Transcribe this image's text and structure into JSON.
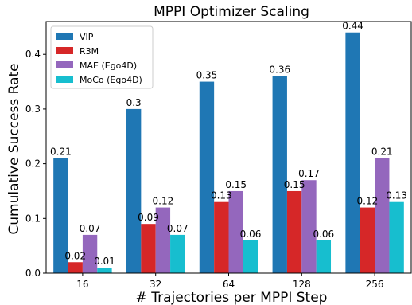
{
  "chart_data": {
    "type": "bar",
    "title": "MPPI Optimizer Scaling",
    "xlabel": "# Trajectories per MPPI Step",
    "ylabel": "Cumulative Success Rate",
    "categories": [
      "16",
      "32",
      "64",
      "128",
      "256"
    ],
    "ylim": [
      0,
      0.46
    ],
    "yticks": [
      0.0,
      0.1,
      0.2,
      0.3,
      0.4
    ],
    "ytick_labels": [
      "0.0",
      "0.1",
      "0.2",
      "0.3",
      "0.4"
    ],
    "grid": false,
    "legend_position": "top-left",
    "series": [
      {
        "name": "VIP",
        "color": "#1f77b4",
        "values": [
          0.21,
          0.3,
          0.35,
          0.36,
          0.44
        ],
        "labels": [
          "0.21",
          "0.3",
          "0.35",
          "0.36",
          "0.44"
        ]
      },
      {
        "name": "R3M",
        "color": "#d62728",
        "values": [
          0.02,
          0.09,
          0.13,
          0.15,
          0.12
        ],
        "labels": [
          "0.02",
          "0.09",
          "0.13",
          "0.15",
          "0.12"
        ]
      },
      {
        "name": "MAE (Ego4D)",
        "color": "#9467bd",
        "values": [
          0.07,
          0.12,
          0.15,
          0.17,
          0.21
        ],
        "labels": [
          "0.07",
          "0.12",
          "0.15",
          "0.17",
          "0.21"
        ]
      },
      {
        "name": "MoCo (Ego4D)",
        "color": "#17becf",
        "values": [
          0.01,
          0.07,
          0.06,
          0.06,
          0.13
        ],
        "labels": [
          "0.01",
          "0.07",
          "0.06",
          "0.06",
          "0.13"
        ]
      }
    ]
  }
}
